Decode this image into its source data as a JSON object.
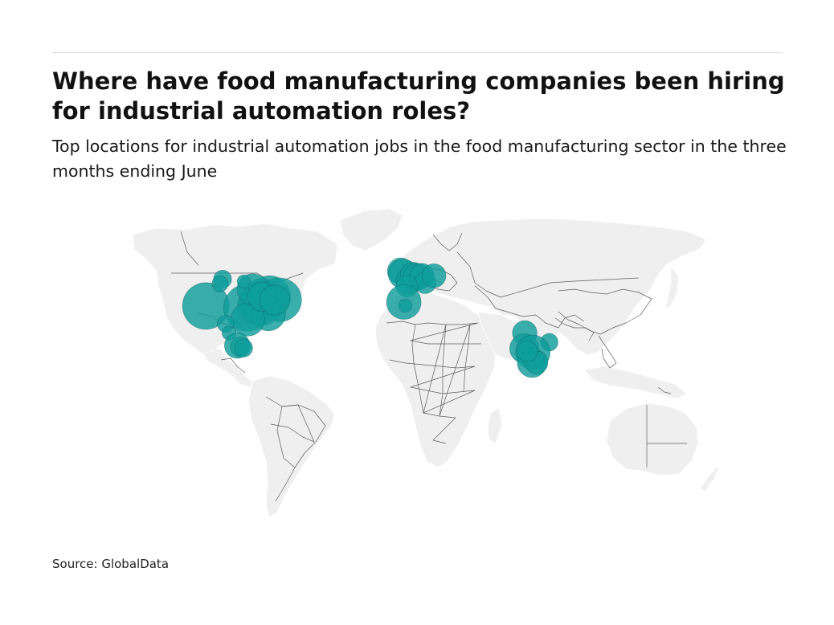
{
  "header": {
    "title": "Where have food manufacturing companies been hiring for industrial automation roles?",
    "subtitle": "Top locations for industrial automation jobs in the food manufacturing sector in the three months ending June"
  },
  "map": {
    "projection": "equirectangular",
    "land_color": "#efefef",
    "border_color": "#5e5e5e",
    "bubble_color": "#0f9e9b",
    "locations": [
      {
        "lon": -122.2,
        "lat": 37.8,
        "size": 1.0
      },
      {
        "lon": -97.0,
        "lat": 37.0,
        "size": 1.0
      },
      {
        "lon": -88.0,
        "lat": 40.5,
        "size": 0.82
      },
      {
        "lon": -83.0,
        "lat": 42.0,
        "size": 0.78
      },
      {
        "lon": -77.0,
        "lat": 40.5,
        "size": 0.88
      },
      {
        "lon": -91.5,
        "lat": 38.0,
        "size": 0.62
      },
      {
        "lon": -88.0,
        "lat": 37.0,
        "size": 0.58
      },
      {
        "lon": -84.0,
        "lat": 34.5,
        "size": 0.55
      },
      {
        "lon": -96.5,
        "lat": 32.0,
        "size": 0.52
      },
      {
        "lon": -93.5,
        "lat": 45.0,
        "size": 0.45
      },
      {
        "lon": -87.8,
        "lat": 41.9,
        "size": 0.4
      },
      {
        "lon": -80.0,
        "lat": 40.4,
        "size": 0.42
      },
      {
        "lon": -112.0,
        "lat": 49.5,
        "size": 0.15
      },
      {
        "lon": -113.5,
        "lat": 47.5,
        "size": 0.12
      },
      {
        "lon": -99.0,
        "lat": 48.5,
        "size": 0.08
      },
      {
        "lon": -110.0,
        "lat": 30.0,
        "size": 0.13
      },
      {
        "lon": -108.0,
        "lat": 26.0,
        "size": 0.09
      },
      {
        "lon": -103.0,
        "lat": 20.5,
        "size": 0.3
      },
      {
        "lon": -101.0,
        "lat": 20.0,
        "size": 0.18
      },
      {
        "lon": -99.1,
        "lat": 19.4,
        "size": 0.15
      },
      {
        "lon": -3.0,
        "lat": 53.0,
        "size": 0.32
      },
      {
        "lon": -1.5,
        "lat": 51.8,
        "size": 0.4
      },
      {
        "lon": 2.0,
        "lat": 48.8,
        "size": 0.3
      },
      {
        "lon": 4.5,
        "lat": 51.5,
        "size": 0.28
      },
      {
        "lon": 7.0,
        "lat": 50.5,
        "size": 0.34
      },
      {
        "lon": 10.0,
        "lat": 51.0,
        "size": 0.28
      },
      {
        "lon": 12.0,
        "lat": 48.0,
        "size": 0.22
      },
      {
        "lon": 17.5,
        "lat": 51.0,
        "size": 0.26
      },
      {
        "lon": 1.0,
        "lat": 46.5,
        "size": 0.22
      },
      {
        "lon": -1.0,
        "lat": 39.5,
        "size": 0.55
      },
      {
        "lon": -0.2,
        "lat": 38.0,
        "size": 0.08
      },
      {
        "lon": 73.0,
        "lat": 26.0,
        "size": 0.28
      },
      {
        "lon": 88.0,
        "lat": 22.0,
        "size": 0.14
      },
      {
        "lon": 72.8,
        "lat": 19.2,
        "size": 0.4
      },
      {
        "lon": 78.0,
        "lat": 17.5,
        "size": 0.55
      },
      {
        "lon": 77.5,
        "lat": 13.0,
        "size": 0.4
      },
      {
        "lon": 80.2,
        "lat": 13.1,
        "size": 0.24
      },
      {
        "lon": 74.5,
        "lat": 18.0,
        "size": 0.2
      }
    ]
  },
  "source": "Source: GlobalData"
}
